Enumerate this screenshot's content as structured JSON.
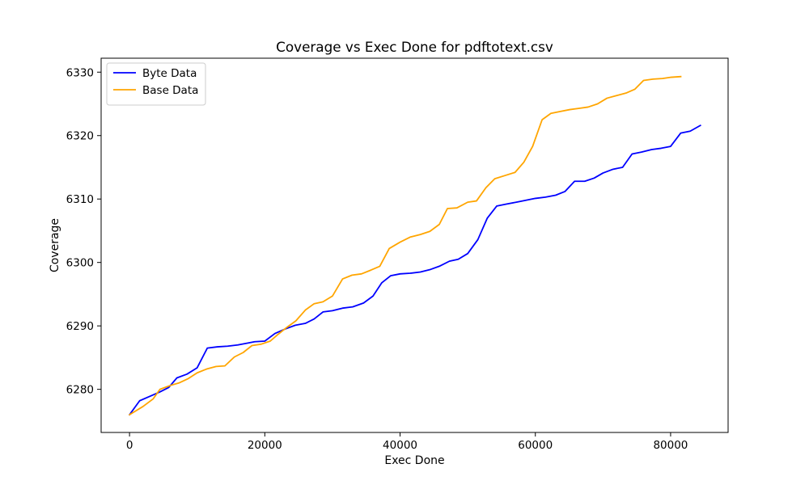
{
  "chart_data": {
    "type": "line",
    "title": "Coverage vs Exec Done for pdftotext.csv",
    "xlabel": "Exec Done",
    "ylabel": "Coverage",
    "xlim": [
      -4200,
      88500
    ],
    "ylim": [
      6273.2,
      6332.2
    ],
    "xticks": [
      0,
      20000,
      40000,
      60000,
      80000
    ],
    "yticks": [
      6280,
      6290,
      6300,
      6310,
      6320,
      6330
    ],
    "grid": false,
    "legend_position": "top-left",
    "series": [
      {
        "name": "Byte Data",
        "color": "#0000ff",
        "x": [
          0,
          1500,
          3000,
          4500,
          5800,
          7000,
          8500,
          10000,
          11500,
          13000,
          14500,
          16000,
          17500,
          18500,
          20000,
          21500,
          23000,
          24500,
          26000,
          27300,
          28600,
          30000,
          31500,
          33000,
          34600,
          36000,
          37300,
          38600,
          40000,
          41500,
          43000,
          44500,
          45800,
          47300,
          48600,
          50000,
          51500,
          52900,
          54300,
          55700,
          57200,
          58600,
          60000,
          61500,
          63000,
          64400,
          65800,
          67300,
          68700,
          70000,
          71500,
          72900,
          74300,
          75700,
          77200,
          78600,
          80000,
          81500,
          82900,
          84400
        ],
        "y": [
          6276,
          6278.2,
          6278.9,
          6279.6,
          6280.3,
          6281.8,
          6282.4,
          6283.4,
          6286.5,
          6286.7,
          6286.8,
          6287.0,
          6287.3,
          6287.5,
          6287.6,
          6288.8,
          6289.5,
          6290.1,
          6290.4,
          6291.1,
          6292.2,
          6292.4,
          6292.8,
          6293.0,
          6293.6,
          6294.7,
          6296.8,
          6297.9,
          6298.2,
          6298.3,
          6298.5,
          6298.9,
          6299.4,
          6300.2,
          6300.5,
          6301.4,
          6303.6,
          6307.0,
          6308.9,
          6309.2,
          6309.5,
          6309.8,
          6310.1,
          6310.3,
          6310.6,
          6311.2,
          6312.8,
          6312.8,
          6313.3,
          6314.1,
          6314.7,
          6315.0,
          6317.1,
          6317.4,
          6317.8,
          6318.0,
          6318.3,
          6320.4,
          6320.7,
          6321.6
        ]
      },
      {
        "name": "Base Data",
        "color": "#ffa500",
        "x": [
          0,
          2000,
          3500,
          4500,
          6000,
          7300,
          8700,
          10000,
          11400,
          12800,
          14100,
          15500,
          16800,
          18100,
          19400,
          20800,
          22000,
          23300,
          24600,
          26000,
          27300,
          28600,
          30000,
          31500,
          32900,
          34300,
          35700,
          37000,
          38400,
          40000,
          41500,
          43000,
          44400,
          45800,
          47000,
          48400,
          50000,
          51300,
          52700,
          54000,
          55500,
          57000,
          58300,
          59600,
          61000,
          62300,
          63700,
          65100,
          66500,
          67800,
          69200,
          70600,
          72000,
          73400,
          74700,
          76000,
          77400,
          78800,
          80100,
          81500
        ],
        "y": [
          6276,
          6277.3,
          6278.5,
          6280.0,
          6280.6,
          6281.0,
          6281.7,
          6282.6,
          6283.2,
          6283.6,
          6283.7,
          6285.1,
          6285.8,
          6286.9,
          6287.1,
          6287.6,
          6288.7,
          6289.8,
          6290.8,
          6292.5,
          6293.5,
          6293.8,
          6294.7,
          6297.4,
          6298.0,
          6298.2,
          6298.8,
          6299.4,
          6302.2,
          6303.2,
          6304.0,
          6304.4,
          6304.9,
          6306.0,
          6308.5,
          6308.6,
          6309.5,
          6309.7,
          6311.8,
          6313.2,
          6313.7,
          6314.2,
          6315.8,
          6318.3,
          6322.5,
          6323.5,
          6323.8,
          6324.1,
          6324.3,
          6324.5,
          6325.0,
          6325.9,
          6326.3,
          6326.7,
          6327.3,
          6328.7,
          6328.9,
          6329.0,
          6329.2,
          6329.3
        ]
      }
    ]
  }
}
